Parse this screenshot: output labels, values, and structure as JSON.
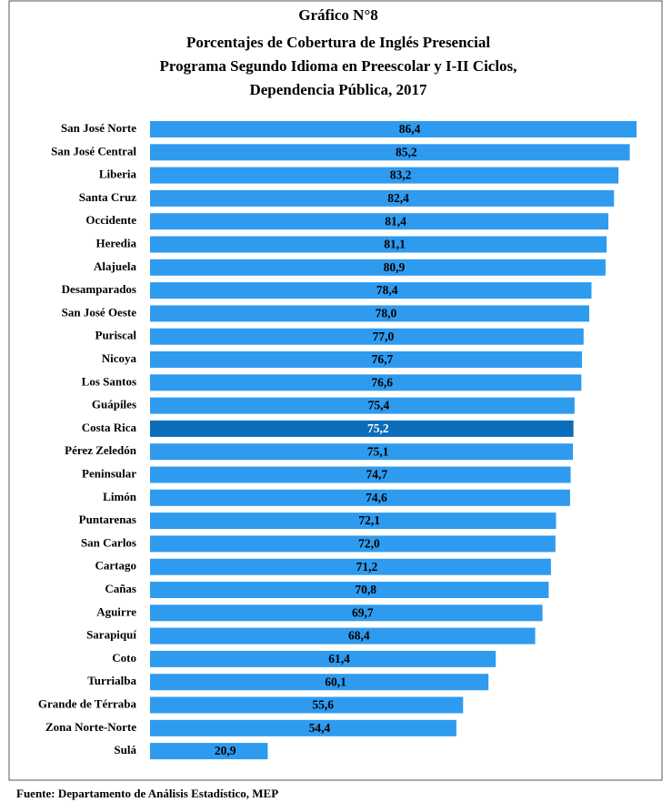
{
  "chart_data": {
    "type": "barh",
    "title": [
      "Gráfico N°8",
      "Porcentajes de Cobertura de Inglés Presencial",
      "Programa Segundo Idioma en Preescolar y I-II  Ciclos,",
      "Dependencia Pública, 2017"
    ],
    "categories": [
      "San José Norte",
      "San José Central",
      "Liberia",
      "Santa Cruz",
      "Occidente",
      "Heredia",
      "Alajuela",
      "Desamparados",
      "San José Oeste",
      "Puriscal",
      "Nicoya",
      "Los Santos",
      "Guápiles",
      "Costa Rica",
      "Pérez Zeledón",
      "Peninsular",
      "Limón",
      "Puntarenas",
      "San Carlos",
      "Cartago",
      "Cañas",
      "Aguirre",
      "Sarapiquí",
      "Coto",
      "Turrialba",
      "Grande de Térraba",
      "Zona Norte-Norte",
      "Sulá"
    ],
    "values": [
      86.4,
      85.2,
      83.2,
      82.4,
      81.4,
      81.1,
      80.9,
      78.4,
      78.0,
      77.0,
      76.7,
      76.6,
      75.4,
      75.2,
      75.1,
      74.7,
      74.6,
      72.1,
      72.0,
      71.2,
      70.8,
      69.7,
      68.4,
      61.4,
      60.1,
      55.6,
      54.4,
      20.9
    ],
    "value_labels": [
      "86,4",
      "85,2",
      "83,2",
      "82,4",
      "81,4",
      "81,1",
      "80,9",
      "78,4",
      "78,0",
      "77,0",
      "76,7",
      "76,6",
      "75,4",
      "75,2",
      "75,1",
      "74,7",
      "74,6",
      "72,1",
      "72,0",
      "71,2",
      "70,8",
      "69,7",
      "68,4",
      "61,4",
      "60,1",
      "55,6",
      "54,4",
      "20,9"
    ],
    "colors": [
      "#2f9bef",
      "#2f9bef",
      "#2f9bef",
      "#2f9bef",
      "#2f9bef",
      "#2f9bef",
      "#2f9bef",
      "#2f9bef",
      "#2f9bef",
      "#2f9bef",
      "#2f9bef",
      "#2f9bef",
      "#2f9bef",
      "#0b6cba",
      "#2f9bef",
      "#2f9bef",
      "#2f9bef",
      "#2f9bef",
      "#2f9bef",
      "#2f9bef",
      "#2f9bef",
      "#2f9bef",
      "#2f9bef",
      "#2f9bef",
      "#2f9bef",
      "#2f9bef",
      "#2f9bef",
      "#2f9bef"
    ],
    "source": "Fuente: Departamento de Análisis Estadístico, MEP"
  }
}
